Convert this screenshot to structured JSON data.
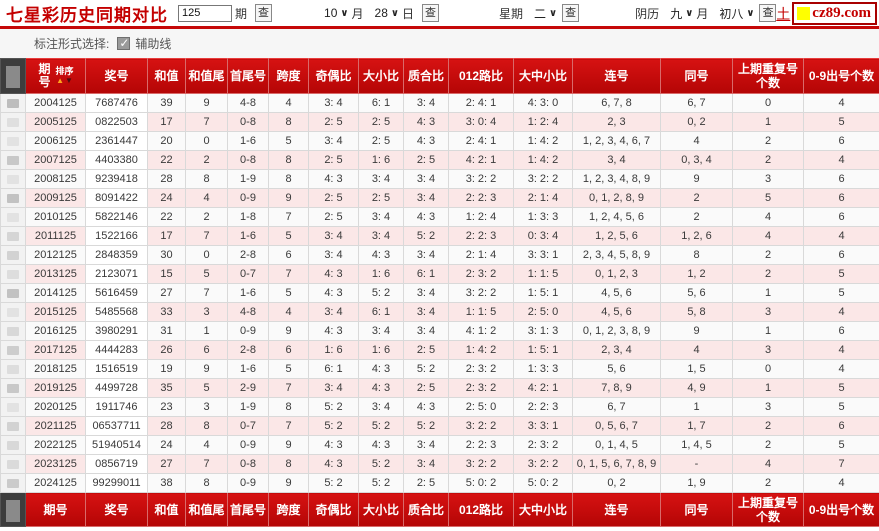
{
  "page": {
    "title": "七星彩历史同期对比",
    "issue_input_value": "125",
    "issue_suffix": "期",
    "search_label": "查",
    "month_value": "10",
    "month_suffix": "月",
    "day_value": "28",
    "day_suffix": "日",
    "weekday_label": "星期",
    "weekday_value": "二",
    "lunar_label": "阴历",
    "lunar_month_value": "九",
    "lunar_month_suffix": "月",
    "lunar_day_value": "初八",
    "logo_prefix": "土",
    "logo_text": "cz89.com",
    "options_label": "标注形式选择:",
    "options_checkbox_label": "辅助线",
    "options_checkbox_checked": true
  },
  "colors": {
    "header_red": "#c40808",
    "stripe_pink": "#fbe7e7",
    "logo_accent": "#ffff00"
  },
  "table": {
    "sort_label": "排序",
    "sort_up_icon": "▲",
    "sort_down_icon": "▼",
    "columns": [
      "期号",
      "奖号",
      "和值",
      "和值尾",
      "首尾号",
      "跨度",
      "奇偶比",
      "大小比",
      "质合比",
      "012路比",
      "大中小比",
      "连号",
      "同号",
      "上期重复号个数",
      "0-9出号个数"
    ],
    "rows": [
      [
        "2004125",
        "7687476",
        "39",
        "9",
        "4-8",
        "4",
        "3: 4",
        "6: 1",
        "3: 4",
        "2: 4: 1",
        "4: 3: 0",
        "6, 7, 8",
        "6, 7",
        "0",
        "4"
      ],
      [
        "2005125",
        "0822503",
        "17",
        "7",
        "0-8",
        "8",
        "2: 5",
        "2: 5",
        "4: 3",
        "3: 0: 4",
        "1: 2: 4",
        "2, 3",
        "0, 2",
        "1",
        "5"
      ],
      [
        "2006125",
        "2361447",
        "20",
        "0",
        "1-6",
        "5",
        "3: 4",
        "2: 5",
        "4: 3",
        "2: 4: 1",
        "1: 4: 2",
        "1, 2, 3, 4, 6, 7",
        "4",
        "2",
        "6"
      ],
      [
        "2007125",
        "4403380",
        "22",
        "2",
        "0-8",
        "8",
        "2: 5",
        "1: 6",
        "2: 5",
        "4: 2: 1",
        "1: 4: 2",
        "3, 4",
        "0, 3, 4",
        "2",
        "4"
      ],
      [
        "2008125",
        "9239418",
        "28",
        "8",
        "1-9",
        "8",
        "4: 3",
        "3: 4",
        "3: 4",
        "3: 2: 2",
        "3: 2: 2",
        "1, 2, 3, 4, 8, 9",
        "9",
        "3",
        "6"
      ],
      [
        "2009125",
        "8091422",
        "24",
        "4",
        "0-9",
        "9",
        "2: 5",
        "2: 5",
        "3: 4",
        "2: 2: 3",
        "2: 1: 4",
        "0, 1, 2, 8, 9",
        "2",
        "5",
        "6"
      ],
      [
        "2010125",
        "5822146",
        "22",
        "2",
        "1-8",
        "7",
        "2: 5",
        "3: 4",
        "4: 3",
        "1: 2: 4",
        "1: 3: 3",
        "1, 2, 4, 5, 6",
        "2",
        "4",
        "6"
      ],
      [
        "2011125",
        "1522166",
        "17",
        "7",
        "1-6",
        "5",
        "3: 4",
        "3: 4",
        "5: 2",
        "2: 2: 3",
        "0: 3: 4",
        "1, 2, 5, 6",
        "1, 2, 6",
        "4",
        "4"
      ],
      [
        "2012125",
        "2848359",
        "30",
        "0",
        "2-8",
        "6",
        "3: 4",
        "4: 3",
        "3: 4",
        "2: 1: 4",
        "3: 3: 1",
        "2, 3, 4, 5, 8, 9",
        "8",
        "2",
        "6"
      ],
      [
        "2013125",
        "2123071",
        "15",
        "5",
        "0-7",
        "7",
        "4: 3",
        "1: 6",
        "6: 1",
        "2: 3: 2",
        "1: 1: 5",
        "0, 1, 2, 3",
        "1, 2",
        "2",
        "5"
      ],
      [
        "2014125",
        "5616459",
        "27",
        "7",
        "1-6",
        "5",
        "4: 3",
        "5: 2",
        "3: 4",
        "3: 2: 2",
        "1: 5: 1",
        "4, 5, 6",
        "5, 6",
        "1",
        "5"
      ],
      [
        "2015125",
        "5485568",
        "33",
        "3",
        "4-8",
        "4",
        "3: 4",
        "6: 1",
        "3: 4",
        "1: 1: 5",
        "2: 5: 0",
        "4, 5, 6",
        "5, 8",
        "3",
        "4"
      ],
      [
        "2016125",
        "3980291",
        "31",
        "1",
        "0-9",
        "9",
        "4: 3",
        "3: 4",
        "3: 4",
        "4: 1: 2",
        "3: 1: 3",
        "0, 1, 2, 3, 8, 9",
        "9",
        "1",
        "6"
      ],
      [
        "2017125",
        "4444283",
        "26",
        "6",
        "2-8",
        "6",
        "1: 6",
        "1: 6",
        "2: 5",
        "1: 4: 2",
        "1: 5: 1",
        "2, 3, 4",
        "4",
        "3",
        "4"
      ],
      [
        "2018125",
        "1516519",
        "19",
        "9",
        "1-6",
        "5",
        "6: 1",
        "4: 3",
        "5: 2",
        "2: 3: 2",
        "1: 3: 3",
        "5, 6",
        "1, 5",
        "0",
        "4"
      ],
      [
        "2019125",
        "4499728",
        "35",
        "5",
        "2-9",
        "7",
        "3: 4",
        "4: 3",
        "2: 5",
        "2: 3: 2",
        "4: 2: 1",
        "7, 8, 9",
        "4, 9",
        "1",
        "5"
      ],
      [
        "2020125",
        "1911746",
        "23",
        "3",
        "1-9",
        "8",
        "5: 2",
        "3: 4",
        "4: 3",
        "2: 5: 0",
        "2: 2: 3",
        "6, 7",
        "1",
        "3",
        "5"
      ],
      [
        "2021125",
        "06537711",
        "28",
        "8",
        "0-7",
        "7",
        "5: 2",
        "5: 2",
        "5: 2",
        "3: 2: 2",
        "3: 3: 1",
        "0, 5, 6, 7",
        "1, 7",
        "2",
        "6"
      ],
      [
        "2022125",
        "51940514",
        "24",
        "4",
        "0-9",
        "9",
        "4: 3",
        "4: 3",
        "3: 4",
        "2: 2: 3",
        "2: 3: 2",
        "0, 1, 4, 5",
        "1, 4, 5",
        "2",
        "5"
      ],
      [
        "2023125",
        "0856719",
        "27",
        "7",
        "0-8",
        "8",
        "4: 3",
        "5: 2",
        "3: 4",
        "3: 2: 2",
        "3: 2: 2",
        "0, 1, 5, 6, 7, 8, 9",
        "-",
        "4",
        "7"
      ],
      [
        "2024125",
        "99299011",
        "38",
        "8",
        "0-9",
        "9",
        "5: 2",
        "5: 2",
        "2: 5",
        "5: 0: 2",
        "5: 0: 2",
        "0, 2",
        "1, 9",
        "2",
        "4"
      ]
    ]
  }
}
